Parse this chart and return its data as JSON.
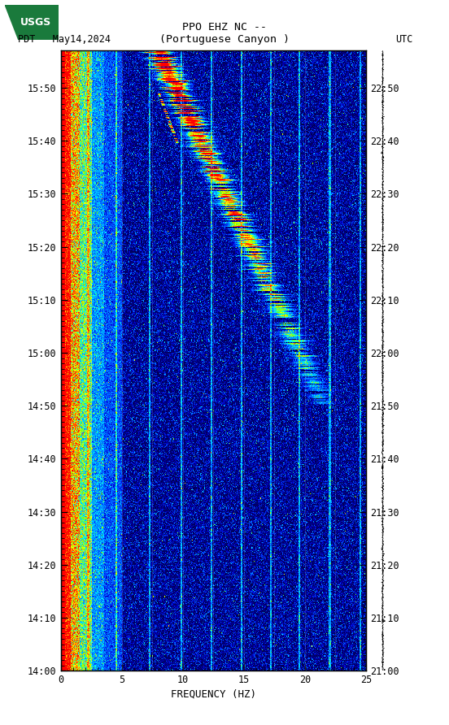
{
  "title_line1": "PPO EHZ NC --",
  "title_line2": "(Portuguese Canyon )",
  "left_label": "PDT   May14,2024",
  "right_label": "UTC",
  "xlabel": "FREQUENCY (HZ)",
  "freq_min": 0,
  "freq_max": 25,
  "left_yticks_labels": [
    "14:00",
    "14:10",
    "14:20",
    "14:30",
    "14:40",
    "14:50",
    "15:00",
    "15:10",
    "15:20",
    "15:30",
    "15:40",
    "15:50"
  ],
  "right_yticks_labels": [
    "21:00",
    "21:10",
    "21:20",
    "21:30",
    "21:40",
    "21:50",
    "22:00",
    "22:10",
    "22:20",
    "22:30",
    "22:40",
    "22:50"
  ],
  "xticks": [
    0,
    5,
    10,
    15,
    20,
    25
  ],
  "background_color": "#ffffff",
  "usgs_green": "#1a7a3c",
  "font_family": "monospace",
  "cmap_colors": [
    [
      0.0,
      "#00004B"
    ],
    [
      0.1,
      "#000080"
    ],
    [
      0.2,
      "#0000CD"
    ],
    [
      0.32,
      "#0040FF"
    ],
    [
      0.44,
      "#0080FF"
    ],
    [
      0.54,
      "#00BFFF"
    ],
    [
      0.62,
      "#00FFFF"
    ],
    [
      0.7,
      "#7FFF00"
    ],
    [
      0.8,
      "#FFFF00"
    ],
    [
      0.88,
      "#FF8000"
    ],
    [
      1.0,
      "#FF0000"
    ]
  ]
}
